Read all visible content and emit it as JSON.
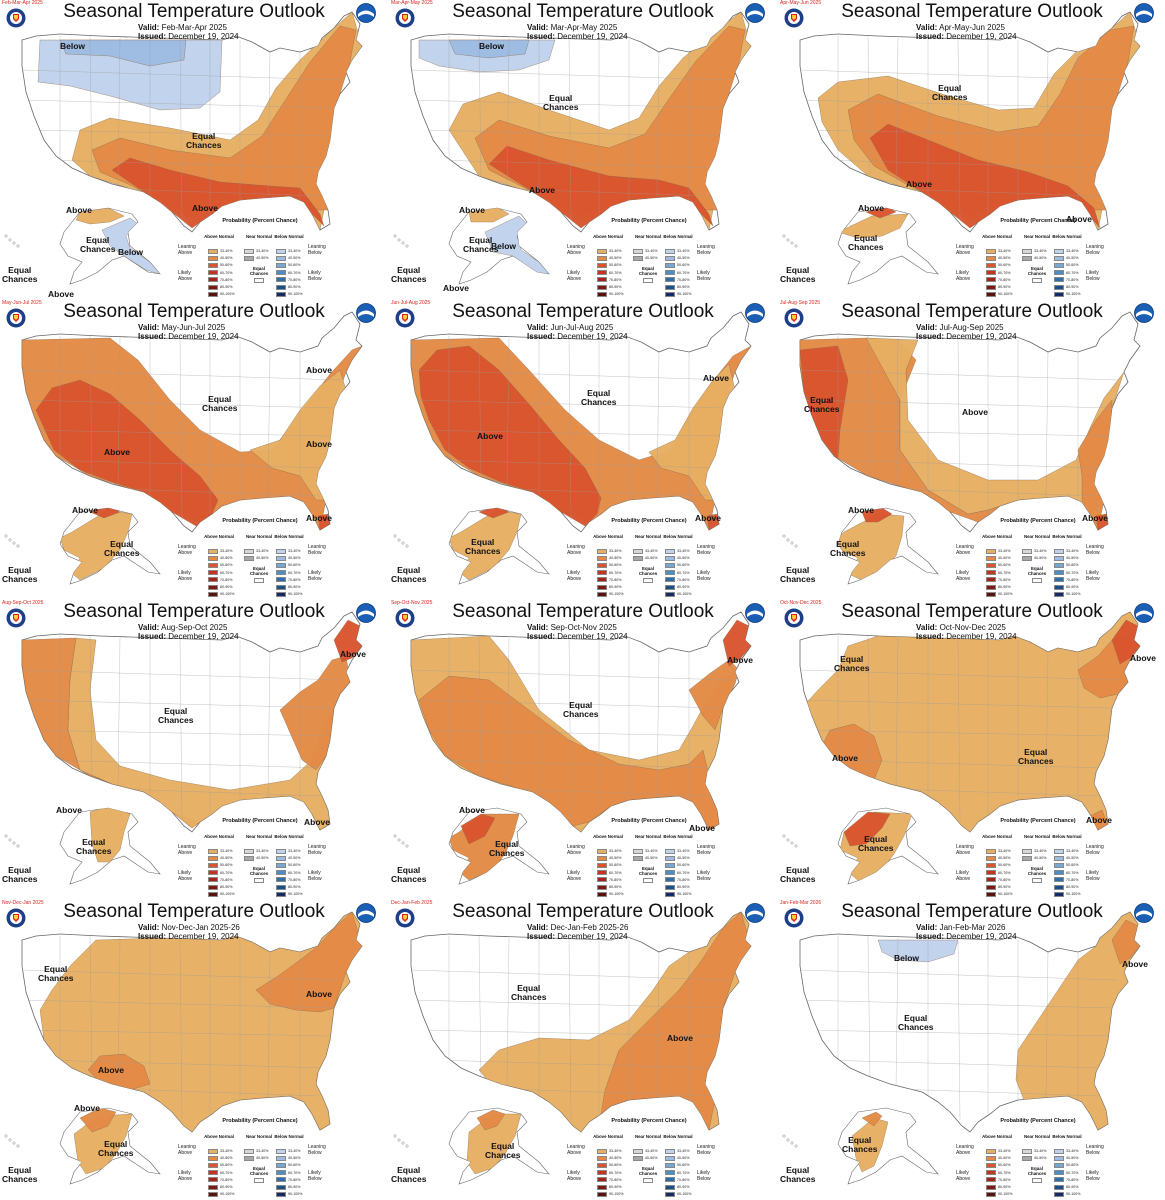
{
  "colors": {
    "above_33_40": "#e6b063",
    "above_40_50": "#e38a46",
    "above_50_60": "#d9552e",
    "above_60_70": "#c43420",
    "above_70_80": "#a32519",
    "above_80_90": "#7c1a12",
    "above_90_100": "#5a120c",
    "near_33_40": "#d7d7d7",
    "near_40_50": "#a8a8a8",
    "below_33_40": "#c0d2ec",
    "below_40_50": "#9ebbe1",
    "below_50_60": "#77a6d3",
    "below_60_70": "#4d8dc2",
    "below_70_80": "#2e6fab",
    "below_80_90": "#1a4f88",
    "below_90_100": "#152b66",
    "land_outline": "#666666"
  },
  "legend": {
    "title": "Probability (Percent Chance)",
    "col_above": "Above Normal",
    "col_near": "Near Normal",
    "col_below": "Below Normal",
    "leaning_above": "Leaning Above",
    "likely_above": "Likely Above",
    "leaning_below": "Leaning Below",
    "likely_below": "Likely Below",
    "equal_chances": "Equal Chances",
    "above_ranges": [
      "33-40%",
      "40-50%",
      "50-60%",
      "60-70%",
      "70-80%",
      "80-90%",
      "90-100%"
    ],
    "near_ranges": [
      "33-40%",
      "40-50%"
    ],
    "below_ranges": [
      "33-40%",
      "40-50%",
      "50-60%",
      "60-70%",
      "70-80%",
      "80-90%",
      "90-100%"
    ]
  },
  "panels": [
    {
      "id": "fma",
      "title": "Seasonal Temperature Outlook",
      "subcaption": "Feb-Mar-Apr 2025",
      "valid_label": "Valid:",
      "valid": "Feb-Mar-Apr 2025",
      "issued_label": "Issued:",
      "issued": "December 19, 2024",
      "labels": [
        {
          "text": "Below"
        },
        {
          "text": "Equal\nChances"
        },
        {
          "text": "Above"
        },
        {
          "text": "Above"
        },
        {
          "text": "Equal\nChances"
        },
        {
          "text": "Below"
        },
        {
          "text": "Equal\nChances"
        },
        {
          "text": "Above"
        }
      ]
    },
    {
      "id": "mam",
      "title": "Seasonal Temperature Outlook",
      "subcaption": "Mar-Apr-May 2025",
      "valid_label": "Valid:",
      "valid": "Mar-Apr-May 2025",
      "issued_label": "Issued:",
      "issued": "December 19, 2024",
      "labels": [
        {
          "text": "Below"
        },
        {
          "text": "Equal\nChances"
        },
        {
          "text": "Above"
        },
        {
          "text": "Above"
        },
        {
          "text": "Equal\nChances"
        },
        {
          "text": "Below"
        },
        {
          "text": "Equal\nChances"
        },
        {
          "text": "Above"
        }
      ]
    },
    {
      "id": "amj",
      "title": "Seasonal Temperature Outlook",
      "subcaption": "Apr-May-Jun 2025",
      "valid_label": "Valid:",
      "valid": "Apr-May-Jun 2025",
      "issued_label": "Issued:",
      "issued": "December 19, 2024",
      "labels": [
        {
          "text": "Equal\nChances"
        },
        {
          "text": "Above"
        },
        {
          "text": "Above"
        },
        {
          "text": "Above"
        },
        {
          "text": "Equal\nChances"
        },
        {
          "text": "Equal\nChances"
        }
      ]
    },
    {
      "id": "mjj",
      "title": "Seasonal Temperature Outlook",
      "subcaption": "May-Jun-Jul 2025",
      "valid_label": "Valid:",
      "valid": "May-Jun-Jul 2025",
      "issued_label": "Issued:",
      "issued": "December 19, 2024",
      "labels": [
        {
          "text": "Equal\nChances"
        },
        {
          "text": "Above"
        },
        {
          "text": "Above"
        },
        {
          "text": "Above"
        },
        {
          "text": "Above"
        },
        {
          "text": "Above"
        },
        {
          "text": "Equal\nChances"
        },
        {
          "text": "Equal\nChances"
        }
      ]
    },
    {
      "id": "jja",
      "title": "Seasonal Temperature Outlook",
      "subcaption": "Jun-Jul-Aug 2025",
      "valid_label": "Valid:",
      "valid": "Jun-Jul-Aug 2025",
      "issued_label": "Issued:",
      "issued": "December 19, 2024",
      "labels": [
        {
          "text": "Equal\nChances"
        },
        {
          "text": "Above"
        },
        {
          "text": "Above"
        },
        {
          "text": "Above"
        },
        {
          "text": "Equal\nChances"
        },
        {
          "text": "Equal\nChances"
        }
      ]
    },
    {
      "id": "jas",
      "title": "Seasonal Temperature Outlook",
      "subcaption": "Jul-Aug-Sep 2025",
      "valid_label": "Valid:",
      "valid": "Jul-Aug-Sep 2025",
      "issued_label": "Issued:",
      "issued": "December 19, 2024",
      "labels": [
        {
          "text": "Above"
        },
        {
          "text": "Equal\nChances"
        },
        {
          "text": "Above"
        },
        {
          "text": "Above"
        },
        {
          "text": "Equal\nChances"
        },
        {
          "text": "Equal\nChances"
        }
      ]
    },
    {
      "id": "aso",
      "title": "Seasonal Temperature Outlook",
      "subcaption": "Aug-Sep-Oct 2025",
      "valid_label": "Valid:",
      "valid": "Aug-Sep-Oct 2025",
      "issued_label": "Issued:",
      "issued": "December 19, 2024",
      "labels": [
        {
          "text": "Equal\nChances"
        },
        {
          "text": "Above"
        },
        {
          "text": "Above"
        },
        {
          "text": "Above"
        },
        {
          "text": "Equal\nChances"
        },
        {
          "text": "Equal\nChances"
        }
      ]
    },
    {
      "id": "son",
      "title": "Seasonal Temperature Outlook",
      "subcaption": "Sep-Oct-Nov 2025",
      "valid_label": "Valid:",
      "valid": "Sep-Oct-Nov 2025",
      "issued_label": "Issued:",
      "issued": "December 19, 2024",
      "labels": [
        {
          "text": "Equal\nChances"
        },
        {
          "text": "Above"
        },
        {
          "text": "Above"
        },
        {
          "text": "Above"
        },
        {
          "text": "Equal\nChances"
        },
        {
          "text": "Equal\nChances"
        }
      ]
    },
    {
      "id": "ond",
      "title": "Seasonal Temperature Outlook",
      "subcaption": "Oct-Nov-Dec 2025",
      "valid_label": "Valid:",
      "valid": "Oct-Nov-Dec 2025",
      "issued_label": "Issued:",
      "issued": "December 19, 2024",
      "labels": [
        {
          "text": "Equal\nChances"
        },
        {
          "text": "Above"
        },
        {
          "text": "Above"
        },
        {
          "text": "Equal\nChances"
        },
        {
          "text": "Above"
        },
        {
          "text": "Equal\nChances"
        },
        {
          "text": "Equal\nChances"
        }
      ]
    },
    {
      "id": "ndj",
      "title": "Seasonal Temperature Outlook",
      "subcaption": "Nov-Dec-Jan 2025",
      "valid_label": "Valid:",
      "valid": "Nov-Dec-Jan 2025-26",
      "issued_label": "Issued:",
      "issued": "December 19, 2024",
      "labels": [
        {
          "text": "Equal\nChances"
        },
        {
          "text": "Above"
        },
        {
          "text": "Above"
        },
        {
          "text": "Above"
        },
        {
          "text": "Equal\nChances"
        },
        {
          "text": "Equal\nChances"
        }
      ]
    },
    {
      "id": "djf",
      "title": "Seasonal Temperature Outlook",
      "subcaption": "Dec-Jan-Feb 2025",
      "valid_label": "Valid:",
      "valid": "Dec-Jan-Feb 2025-26",
      "issued_label": "Issued:",
      "issued": "December 19, 2024",
      "labels": [
        {
          "text": "Equal\nChances"
        },
        {
          "text": "Above"
        },
        {
          "text": "Equal\nChances"
        },
        {
          "text": "Equal\nChances"
        }
      ]
    },
    {
      "id": "jfm",
      "title": "Seasonal Temperature Outlook",
      "subcaption": "Jan-Feb-Mar 2026",
      "valid_label": "Valid:",
      "valid": "Jan-Feb-Mar 2026",
      "issued_label": "Issued:",
      "issued": "December 19, 2024",
      "labels": [
        {
          "text": "Below"
        },
        {
          "text": "Equal\nChances"
        },
        {
          "text": "Above"
        },
        {
          "text": "Equal\nChances"
        },
        {
          "text": "Equal\nChances"
        }
      ]
    }
  ]
}
